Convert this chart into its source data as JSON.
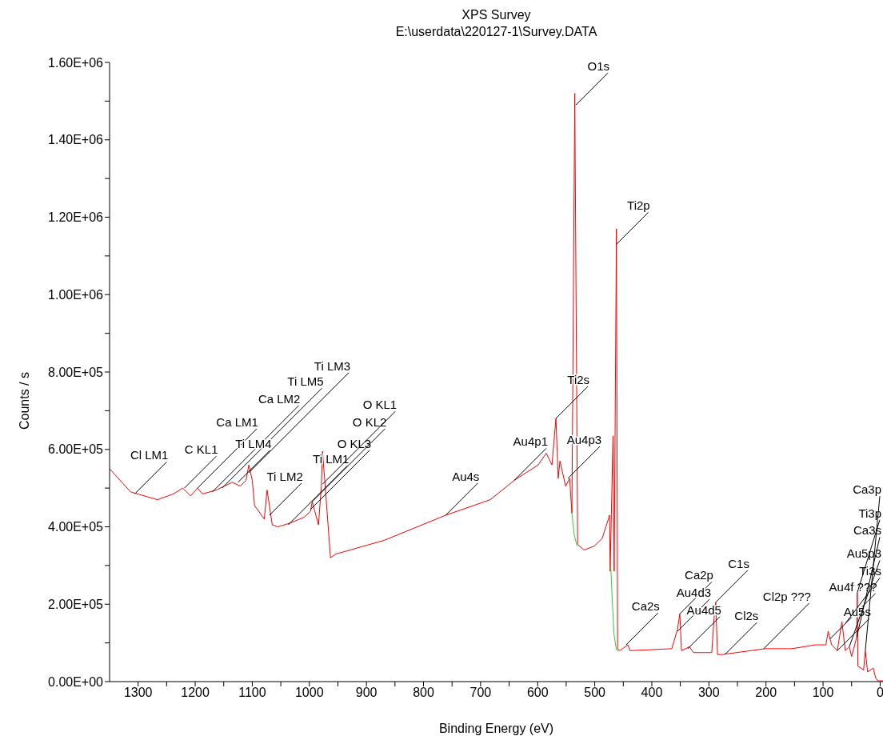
{
  "chart_data": {
    "type": "line",
    "title": "XPS Survey",
    "subtitle": "E:\\userdata\\220127-1\\Survey.DATA",
    "xlabel": "Binding Energy (eV)",
    "ylabel": "Counts / s",
    "xlim": [
      1350,
      -5
    ],
    "xticks": [
      {
        "value": 1300,
        "label": "1300"
      },
      {
        "value": 1250,
        "label": null
      },
      {
        "value": 1200,
        "label": "1200"
      },
      {
        "value": 1150,
        "label": null
      },
      {
        "value": 1100,
        "label": "1100"
      },
      {
        "value": 1050,
        "label": null
      },
      {
        "value": 1000,
        "label": "1000"
      },
      {
        "value": 950,
        "label": null
      },
      {
        "value": 900,
        "label": "900"
      },
      {
        "value": 850,
        "label": null
      },
      {
        "value": 800,
        "label": "800"
      },
      {
        "value": 750,
        "label": null
      },
      {
        "value": 700,
        "label": "700"
      },
      {
        "value": 650,
        "label": null
      },
      {
        "value": 600,
        "label": "600"
      },
      {
        "value": 550,
        "label": null
      },
      {
        "value": 500,
        "label": "500"
      },
      {
        "value": 450,
        "label": null
      },
      {
        "value": 400,
        "label": "400"
      },
      {
        "value": 350,
        "label": null
      },
      {
        "value": 300,
        "label": "300"
      },
      {
        "value": 250,
        "label": null
      },
      {
        "value": 200,
        "label": "200"
      },
      {
        "value": 150,
        "label": null
      },
      {
        "value": 100,
        "label": "100"
      },
      {
        "value": 50,
        "label": null
      },
      {
        "value": 0,
        "label": "0"
      }
    ],
    "ylim": [
      0,
      1600000
    ],
    "yticks": [
      {
        "value": 0,
        "label": "0.00E+00"
      },
      {
        "value": 100000,
        "label": null
      },
      {
        "value": 200000,
        "label": "2.00E+05"
      },
      {
        "value": 300000,
        "label": null
      },
      {
        "value": 400000,
        "label": "4.00E+05"
      },
      {
        "value": 500000,
        "label": null
      },
      {
        "value": 600000,
        "label": "6.00E+05"
      },
      {
        "value": 700000,
        "label": null
      },
      {
        "value": 800000,
        "label": "8.00E+05"
      },
      {
        "value": 900000,
        "label": null
      },
      {
        "value": 1000000,
        "label": "1.00E+06"
      },
      {
        "value": 1100000,
        "label": null
      },
      {
        "value": 1200000,
        "label": "1.20E+06"
      },
      {
        "value": 1300000,
        "label": null
      },
      {
        "value": 1400000,
        "label": "1.40E+06"
      },
      {
        "value": 1500000,
        "label": null
      },
      {
        "value": 1600000,
        "label": "1.60E+06"
      }
    ],
    "grid": false,
    "legend": false,
    "marker": "none",
    "line_style": "solid",
    "series": [
      {
        "color": "#ff0000",
        "x": [
          1350,
          1313,
          1266,
          1238,
          1222,
          1208,
          1196,
          1187,
          1163,
          1135,
          1121,
          1111,
          1106,
          1100,
          1096,
          1079,
          1074,
          1065,
          1055,
          1033,
          1009,
          998,
          995,
          984,
          979,
          977,
          973,
          963,
          953,
          869,
          761,
          683,
          641,
          599,
          585,
          575,
          568,
          564,
          561,
          551,
          544,
          540,
          535,
          530,
          519,
          501,
          487,
          474,
          473,
          468,
          466,
          462,
          460,
          456,
          442,
          438,
          365,
          355,
          351,
          348,
          334,
          327,
          295,
          291,
          288,
          285,
          277,
          201,
          155,
          113,
          95,
          91,
          85,
          75,
          67,
          61,
          54,
          50,
          41,
          40,
          39,
          29,
          26,
          22,
          12,
          8,
          4,
          -5
        ],
        "values": [
          550000,
          490000,
          470000,
          485000,
          500000,
          480000,
          500000,
          485000,
          495000,
          515000,
          505000,
          520000,
          560000,
          520000,
          455000,
          420000,
          495000,
          405000,
          400000,
          410000,
          425000,
          440000,
          465000,
          405000,
          505000,
          595000,
          520000,
          320000,
          330000,
          365000,
          430000,
          470000,
          520000,
          560000,
          590000,
          560000,
          680000,
          525000,
          570000,
          505000,
          525000,
          435000,
          1520000,
          355000,
          340000,
          350000,
          370000,
          430000,
          285000,
          635000,
          285000,
          1170000,
          85000,
          80000,
          95000,
          80000,
          85000,
          135000,
          175000,
          80000,
          90000,
          75000,
          75000,
          165000,
          205000,
          70000,
          70000,
          85000,
          85000,
          95000,
          95000,
          130000,
          95000,
          80000,
          155000,
          80000,
          90000,
          65000,
          115000,
          230000,
          40000,
          30000,
          80000,
          25000,
          35000,
          10000,
          2000,
          2000
        ]
      },
      {
        "color": "#33cc33",
        "x": [
          540,
          536,
          531,
          500,
          472,
          469,
          466,
          462,
          458
        ],
        "values": [
          435000,
          380000,
          350000,
          null,
          300000,
          200000,
          120000,
          82000,
          80000
        ]
      }
    ],
    "annotations": [
      {
        "text": "Cl LM1",
        "x": 1306,
        "y": 485000
      },
      {
        "text": "C KL1",
        "x": 1219,
        "y": 500000
      },
      {
        "text": "Ca LM1",
        "x": 1196,
        "y": 500000
      },
      {
        "text": "Ca LM2",
        "x": 1170,
        "y": 490000
      },
      {
        "text": "Ti LM5",
        "x": 1153,
        "y": 500000
      },
      {
        "text": "Ti LM4",
        "x": 1125,
        "y": 515000
      },
      {
        "text": "Ti LM3",
        "x": 1106,
        "y": 540000
      },
      {
        "text": "Ti LM2",
        "x": 1070,
        "y": 430000
      },
      {
        "text": "Ti LM1",
        "x": 1037,
        "y": 405000
      },
      {
        "text": "O KL3",
        "x": 998,
        "y": 445000
      },
      {
        "text": "O KL2",
        "x": 995,
        "y": 465000
      },
      {
        "text": "O KL1",
        "x": 977,
        "y": 510000
      },
      {
        "text": "Au4s",
        "x": 761,
        "y": 430000
      },
      {
        "text": "Au4p1",
        "x": 641,
        "y": 520000
      },
      {
        "text": "Ti2s",
        "x": 568,
        "y": 680000
      },
      {
        "text": "Au4p3",
        "x": 547,
        "y": 525000
      },
      {
        "text": "O1s",
        "x": 533,
        "y": 1490000
      },
      {
        "text": "Ti2p",
        "x": 462,
        "y": 1130000
      },
      {
        "text": "Ca2s",
        "x": 445,
        "y": 95000
      },
      {
        "text": "Ca2p",
        "x": 351,
        "y": 175000
      },
      {
        "text": "Au4d3",
        "x": 355,
        "y": 130000
      },
      {
        "text": "Au4d5",
        "x": 337,
        "y": 85000
      },
      {
        "text": "C1s",
        "x": 288,
        "y": 205000
      },
      {
        "text": "Cl2s",
        "x": 272,
        "y": 70000
      },
      {
        "text": "Cl2p ???",
        "x": 204,
        "y": 85000
      },
      {
        "text": "Au4f ???",
        "x": 88,
        "y": 110000
      },
      {
        "text": "Au5s",
        "x": 75,
        "y": 80000
      },
      {
        "text": "Ti3s",
        "x": 61,
        "y": 150000
      },
      {
        "text": "Au5p3",
        "x": 54,
        "y": 90000
      },
      {
        "text": "Ca3s",
        "x": 41,
        "y": 115000
      },
      {
        "text": "Ti3p",
        "x": 40,
        "y": 230000
      },
      {
        "text": "Ca3p",
        "x": 26,
        "y": 80000
      }
    ]
  }
}
